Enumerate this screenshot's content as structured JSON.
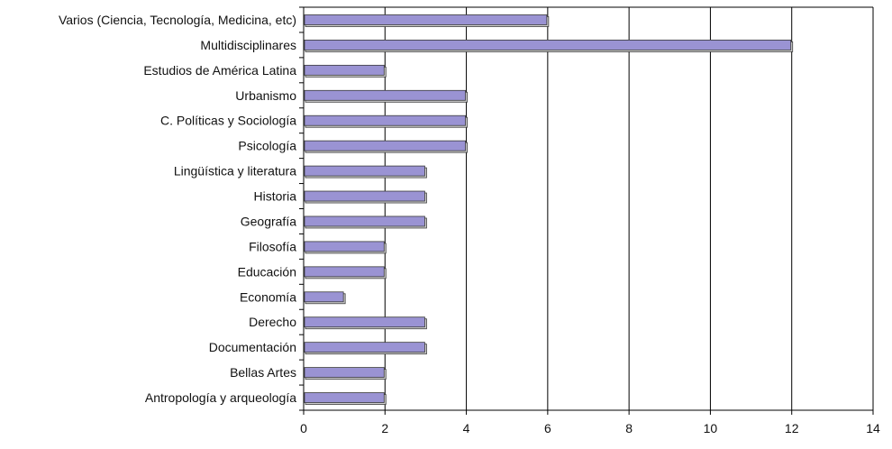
{
  "chart_data": {
    "type": "bar",
    "orientation": "horizontal",
    "categories": [
      "Varios (Ciencia, Tecnología, Medicina, etc)",
      "Multidisciplinares",
      "Estudios de América Latina",
      "Urbanismo",
      "C. Políticas y Sociología",
      "Psicología",
      "Lingüística y literatura",
      "Historia",
      "Geografía",
      "Filosofía",
      "Educación",
      "Economía",
      "Derecho",
      "Documentación",
      "Bellas Artes",
      "Antropología y arqueología"
    ],
    "values": [
      6,
      12,
      2,
      4,
      4,
      4,
      3,
      3,
      3,
      2,
      2,
      1,
      3,
      3,
      2,
      2
    ],
    "xlim": [
      0,
      14
    ],
    "xticks": [
      0,
      2,
      4,
      6,
      8,
      10,
      12,
      14
    ],
    "grid": "vertical",
    "legend": "none",
    "title": "",
    "xlabel": "",
    "ylabel": "",
    "colors": {
      "bar_fill": "#9a93d3",
      "bar_edge": "#3a3a3a",
      "bar_shadow": "#ffffff",
      "grid": "#000000",
      "axis": "#000000"
    }
  }
}
